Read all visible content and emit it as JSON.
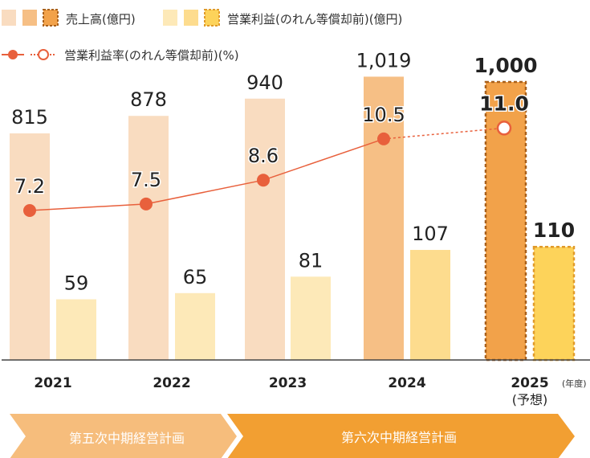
{
  "chart_data": {
    "type": "bar",
    "categories": [
      "2021",
      "2022",
      "2023",
      "2024",
      "2025"
    ],
    "category_notes": [
      "",
      "",
      "",
      "",
      "(予想)"
    ],
    "x_unit_label": "(年度)",
    "series": [
      {
        "name": "売上高(億円)",
        "values": [
          815,
          878,
          940,
          1019,
          1000
        ],
        "value_labels": [
          "815",
          "878",
          "940",
          "1,019",
          "1,000"
        ]
      },
      {
        "name": "営業利益(のれん等償却前)(億円)",
        "values": [
          59,
          65,
          81,
          107,
          110
        ],
        "value_labels": [
          "59",
          "65",
          "81",
          "107",
          "110"
        ]
      },
      {
        "name": "営業利益率(のれん等償却前)(%)",
        "type": "line",
        "values": [
          7.2,
          7.5,
          8.6,
          10.5,
          11.0
        ],
        "value_labels": [
          "7.2",
          "7.5",
          "8.6",
          "10.5",
          "11.0"
        ]
      }
    ],
    "forecast_index": 4,
    "plans": [
      {
        "label": "第五次中期経営計画",
        "years": [
          "2021",
          "2022"
        ],
        "color": "#f6bd7c"
      },
      {
        "label": "第六次中期経営計画",
        "years": [
          "2023",
          "2024",
          "2025"
        ],
        "color": "#f29f32"
      }
    ],
    "colors": {
      "revenue": [
        "#f9dcc0",
        "#f6bf85",
        "#f2a24a"
      ],
      "revenue_border": "#a8601c",
      "profit": [
        "#fde9b8",
        "#fddc8e",
        "#fdd35a"
      ],
      "profit_border": "#e09a2a",
      "line": "#e8603c"
    }
  }
}
